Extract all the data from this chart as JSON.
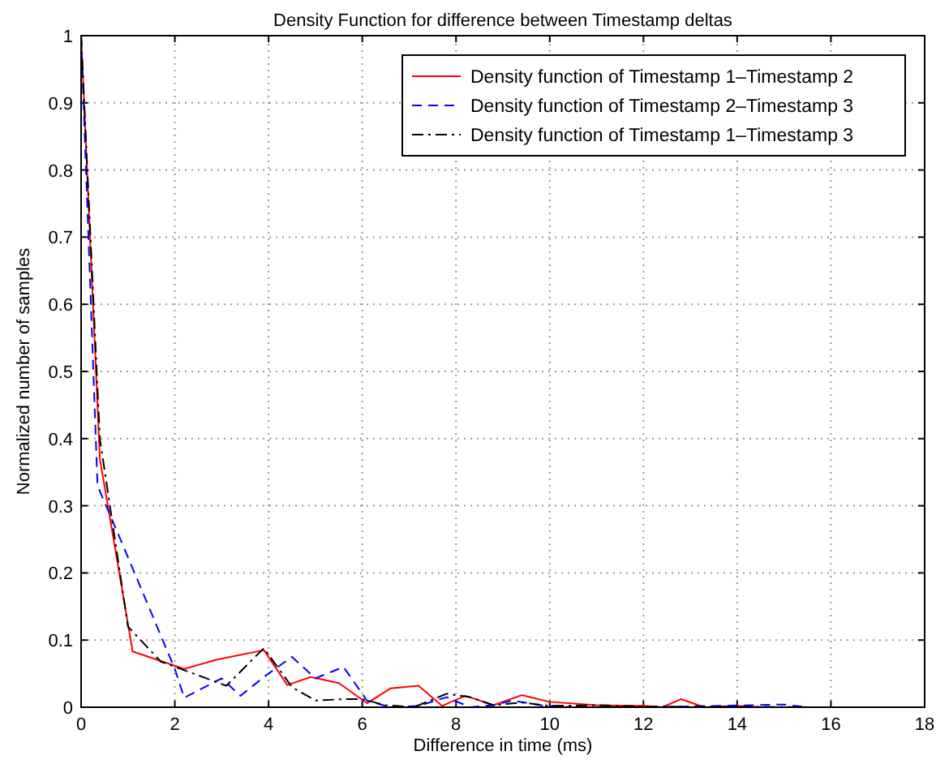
{
  "chart_data": {
    "type": "line",
    "title": "Density Function for difference between Timestamp deltas",
    "xlabel": "Difference in time (ms)",
    "ylabel": "Normalized number of samples",
    "xlim": [
      0,
      18
    ],
    "xticks": [
      0,
      2,
      4,
      6,
      8,
      10,
      12,
      14,
      16,
      18
    ],
    "ylim": [
      0,
      1
    ],
    "yticks": [
      0,
      0.1,
      0.2,
      0.3,
      0.4,
      0.5,
      0.6,
      0.7,
      0.8,
      0.9,
      1
    ],
    "grid": true,
    "legend": "top right",
    "series": [
      {
        "name": "Density function of Timestamp 1–Timestamp 2",
        "color": "#ff0000",
        "line_style": "solid",
        "x": [
          0,
          0.4,
          1.1,
          2.2,
          2.9,
          3.9,
          4.4,
          4.9,
          5.5,
          6.1,
          6.6,
          7.2,
          7.7,
          8.2,
          8.8,
          9.4,
          10,
          11,
          12,
          12.4,
          12.8,
          13.3,
          14,
          14.5,
          16
        ],
        "values": [
          1,
          0.37,
          0.083,
          0.057,
          0.071,
          0.085,
          0.033,
          0.045,
          0.036,
          0.006,
          0.028,
          0.032,
          0.002,
          0.017,
          0.003,
          0.018,
          0.008,
          0.003,
          0.002,
          0,
          0.012,
          0,
          0.002,
          0,
          0
        ]
      },
      {
        "name": "Density function of Timestamp 2–Timestamp 3",
        "color": "#0000ff",
        "line_style": "dashed",
        "x": [
          0,
          0.35,
          0.9,
          2,
          2.2,
          3,
          3.4,
          3.9,
          4.5,
          5,
          5.6,
          6.1,
          6.6,
          7.2,
          7.8,
          8.3,
          8.8,
          9.2,
          9.8,
          10.5,
          12,
          15,
          15.5,
          16
        ],
        "values": [
          1,
          0.33,
          0.24,
          0.057,
          0.014,
          0.043,
          0.017,
          0.045,
          0.075,
          0.043,
          0.06,
          0.01,
          0,
          0.002,
          0.015,
          0,
          0.003,
          0.01,
          0.003,
          0,
          0,
          0.004,
          0,
          0
        ]
      },
      {
        "name": "Density function of Timestamp 1–Timestamp 3",
        "color": "#000000",
        "line_style": "dashdot",
        "x": [
          0,
          0.4,
          1,
          1.7,
          2.4,
          3.1,
          3.9,
          4.5,
          5,
          5.6,
          6,
          6.5,
          7.1,
          7.8,
          8.3,
          8.8,
          9.4,
          10,
          11,
          12,
          13,
          16
        ],
        "values": [
          1,
          0.4,
          0.12,
          0.068,
          0.05,
          0.032,
          0.088,
          0.03,
          0.01,
          0.012,
          0.012,
          0.003,
          0,
          0.02,
          0.015,
          0.003,
          0.007,
          0.002,
          0.003,
          0.001,
          0.001,
          0
        ]
      }
    ]
  }
}
